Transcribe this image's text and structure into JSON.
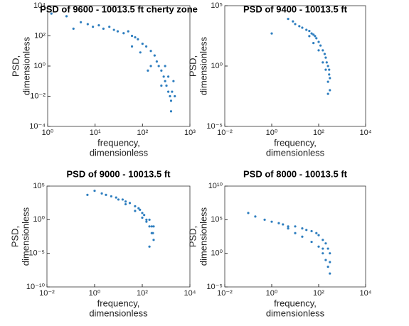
{
  "chart_data": [
    {
      "type": "scatter",
      "title": "PSD of 9600 - 10013.5 ft cherty zone",
      "xlabel": [
        "frequency,",
        "dimensionless"
      ],
      "ylabel": [
        "PSD,",
        "dimensionless"
      ],
      "log_x": true,
      "log_y": true,
      "color": "#2e7ebf",
      "xlim": [
        1,
        1000
      ],
      "xticks": [
        {
          "value": 1,
          "label": "10⁰"
        },
        {
          "value": 10,
          "label": "10¹"
        },
        {
          "value": 100,
          "label": "10²"
        },
        {
          "value": 1000,
          "label": "10³"
        }
      ],
      "ylim": [
        0.0001,
        10000
      ],
      "yticks": [
        {
          "value": 0.0001,
          "label": "10⁻⁴"
        },
        {
          "value": 0.01,
          "label": "10⁻²"
        },
        {
          "value": 1,
          "label": "10⁰"
        },
        {
          "value": 100,
          "label": "10²"
        },
        {
          "value": 10000,
          "label": "10⁴"
        }
      ],
      "x": [
        1.2,
        2.5,
        3.5,
        5,
        7,
        9,
        12,
        15,
        20,
        25,
        30,
        40,
        50,
        60,
        70,
        80,
        100,
        120,
        150,
        180,
        200,
        220,
        250,
        280,
        300,
        320,
        350,
        380,
        400,
        420,
        450,
        480,
        150,
        250,
        300,
        350,
        400,
        60,
        90,
        130
      ],
      "values": [
        3000,
        2000,
        300,
        800,
        600,
        400,
        500,
        300,
        400,
        250,
        200,
        150,
        200,
        100,
        80,
        60,
        30,
        20,
        10,
        5,
        2,
        1,
        0.5,
        0.2,
        0.1,
        0.05,
        0.02,
        0.01,
        0.005,
        0.02,
        0.1,
        0.01,
        1,
        0.05,
        1,
        0.2,
        0.001,
        20,
        8,
        0.5
      ]
    },
    {
      "type": "scatter",
      "title": "PSD of 9400 - 10013.5 ft",
      "xlabel": [
        "frequency,",
        "dimensionless"
      ],
      "ylabel": [
        "PSD,",
        "dimensionless"
      ],
      "log_x": true,
      "log_y": true,
      "color": "#2e7ebf",
      "xlim": [
        0.01,
        10000
      ],
      "xticks": [
        {
          "value": 0.01,
          "label": "10⁻²"
        },
        {
          "value": 1,
          "label": "10⁰"
        },
        {
          "value": 100,
          "label": "10²"
        },
        {
          "value": 10000,
          "label": "10⁴"
        }
      ],
      "ylim": [
        1e-05,
        100000
      ],
      "yticks": [
        {
          "value": 1e-05,
          "label": "10⁻⁵"
        },
        {
          "value": 1,
          "label": "10⁰"
        },
        {
          "value": 100000,
          "label": "10⁵"
        }
      ],
      "x": [
        1,
        5,
        8,
        10,
        15,
        20,
        30,
        40,
        50,
        60,
        70,
        80,
        100,
        120,
        150,
        180,
        200,
        220,
        250,
        280,
        300,
        300,
        250,
        200,
        150,
        100,
        60,
        40,
        250,
        280
      ],
      "values": [
        500,
        8000,
        5000,
        3000,
        2000,
        1500,
        1000,
        800,
        500,
        400,
        300,
        200,
        100,
        50,
        20,
        10,
        5,
        2,
        1,
        0.5,
        0.1,
        0.01,
        0.05,
        0.5,
        2,
        20,
        80,
        300,
        0.005,
        0.2
      ]
    },
    {
      "type": "scatter",
      "title": "PSD of 9000 - 10013.5 ft",
      "xlabel": [
        "frequency,",
        "dimensionless"
      ],
      "ylabel": [
        "PSD,",
        "dimensionless"
      ],
      "log_x": true,
      "log_y": true,
      "color": "#2e7ebf",
      "xlim": [
        0.01,
        10000
      ],
      "xticks": [
        {
          "value": 0.01,
          "label": "10⁻²"
        },
        {
          "value": 1,
          "label": "10⁰"
        },
        {
          "value": 100,
          "label": "10²"
        },
        {
          "value": 10000,
          "label": "10⁴"
        }
      ],
      "ylim": [
        1e-10,
        100000
      ],
      "yticks": [
        {
          "value": 1e-10,
          "label": "10⁻¹⁰"
        },
        {
          "value": 1e-05,
          "label": "10⁻⁵"
        },
        {
          "value": 1,
          "label": "10⁰"
        },
        {
          "value": 100000,
          "label": "10⁵"
        }
      ],
      "x": [
        0.5,
        1,
        2,
        3,
        5,
        8,
        10,
        15,
        20,
        30,
        50,
        70,
        100,
        120,
        150,
        200,
        250,
        300,
        300,
        250,
        200,
        150,
        100,
        50,
        20,
        200,
        280,
        80
      ],
      "values": [
        5000,
        20000,
        8000,
        5000,
        3000,
        2000,
        1000,
        1000,
        500,
        300,
        100,
        50,
        10,
        5,
        1,
        0.1,
        0.01,
        0.001,
        0.1,
        0.1,
        0.0001,
        0.5,
        2,
        20,
        200,
        1,
        0.01,
        30
      ]
    },
    {
      "type": "scatter",
      "title": "PSD of 8000 - 10013.5 ft",
      "xlabel": [
        "frequency,",
        "dimensionless"
      ],
      "ylabel": [
        "PSD,",
        "dimensionless"
      ],
      "log_x": true,
      "log_y": true,
      "color": "#2e7ebf",
      "xlim": [
        0.01,
        10000
      ],
      "xticks": [
        {
          "value": 0.01,
          "label": "10⁻²"
        },
        {
          "value": 1,
          "label": "10⁰"
        },
        {
          "value": 100,
          "label": "10²"
        },
        {
          "value": 10000,
          "label": "10⁴"
        }
      ],
      "ylim": [
        1e-05,
        10000000000
      ],
      "yticks": [
        {
          "value": 1e-05,
          "label": "10⁻⁵"
        },
        {
          "value": 1,
          "label": "10⁰"
        },
        {
          "value": 100000,
          "label": "10⁵"
        },
        {
          "value": 10000000000,
          "label": "10¹⁰"
        }
      ],
      "x": [
        0.1,
        0.2,
        0.5,
        1,
        2,
        3,
        5,
        10,
        20,
        30,
        50,
        80,
        100,
        150,
        200,
        250,
        300,
        300,
        250,
        200,
        150,
        100,
        50,
        20,
        10,
        5,
        300,
        150
      ],
      "values": [
        1000000,
        300000,
        100000,
        50000,
        30000,
        20000,
        10000,
        10000,
        5000,
        3000,
        2000,
        1000,
        500,
        100,
        30,
        5,
        1,
        0.001,
        0.01,
        0.1,
        1,
        10,
        50,
        300,
        1000,
        5000,
        0.05,
        5
      ]
    }
  ]
}
